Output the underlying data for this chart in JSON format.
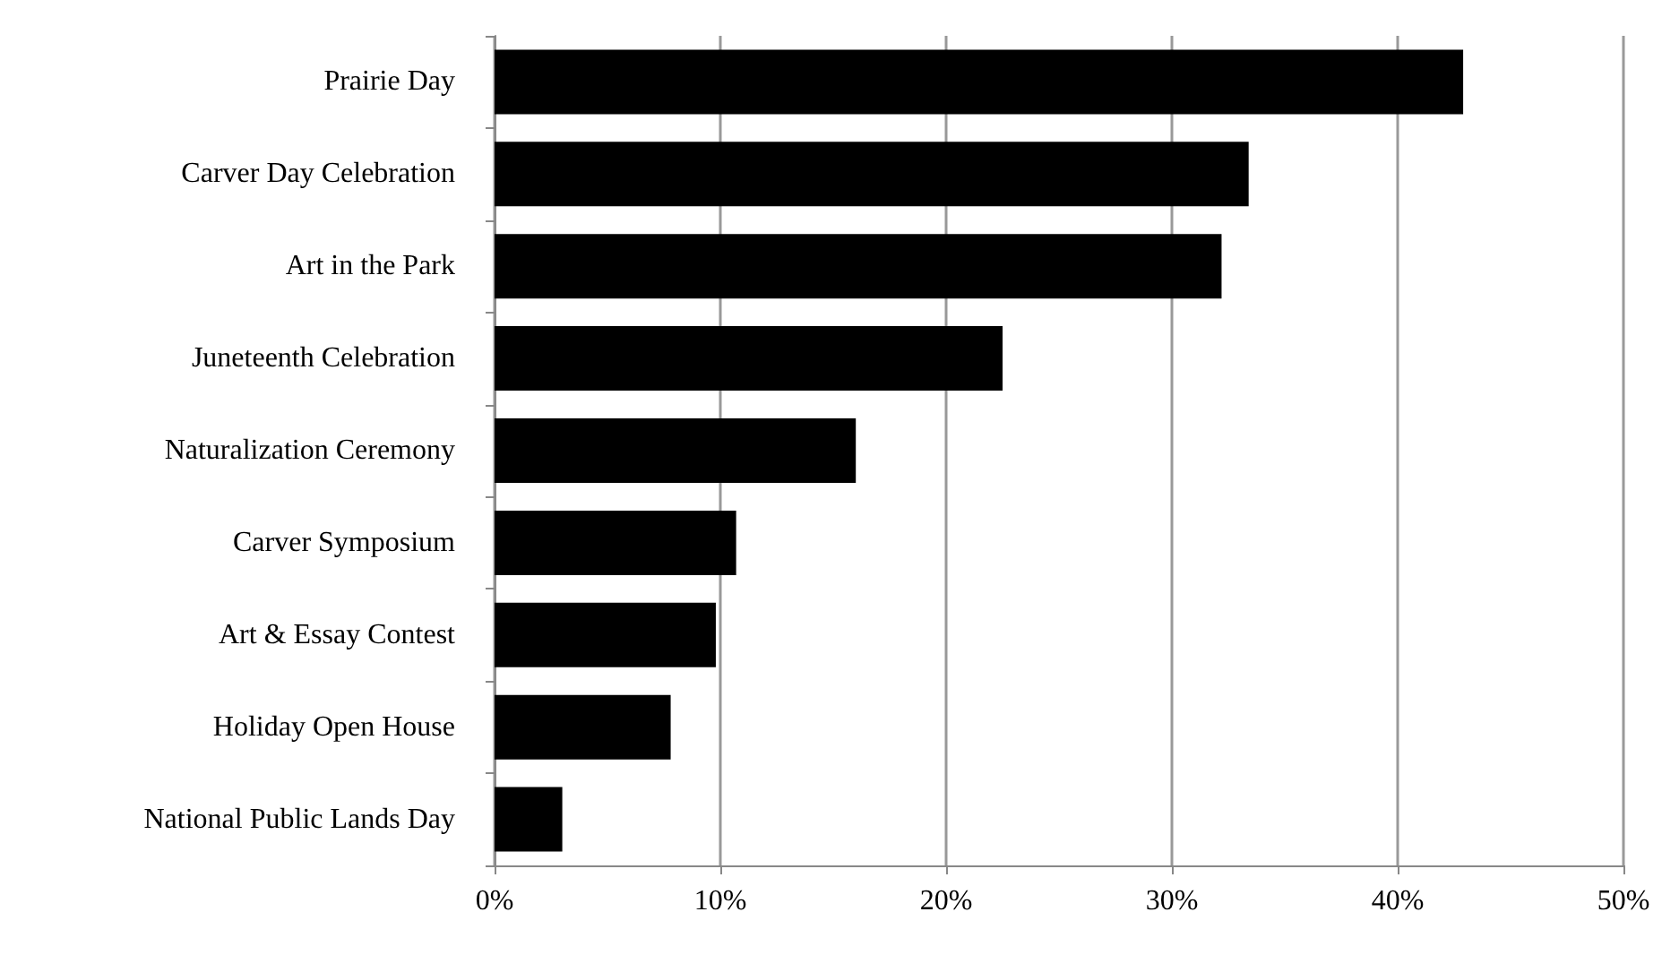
{
  "chart_data": {
    "type": "bar",
    "orientation": "horizontal",
    "categories": [
      "Prairie Day",
      "Carver Day Celebration",
      "Art in the Park",
      "Juneteenth Celebration",
      "Naturalization Ceremony",
      "Carver Symposium",
      "Art & Essay Contest",
      "Holiday Open House",
      "National Public Lands Day"
    ],
    "values": [
      42.9,
      33.4,
      32.2,
      22.5,
      16.0,
      10.7,
      9.8,
      7.8,
      3.0
    ],
    "color": "#000000",
    "xlim": [
      0,
      50
    ],
    "xticks": [
      {
        "value": 0,
        "label": "0%"
      },
      {
        "value": 10,
        "label": "10%"
      },
      {
        "value": 20,
        "label": "20%"
      },
      {
        "value": 30,
        "label": "30%"
      },
      {
        "value": 40,
        "label": "40%"
      },
      {
        "value": 50,
        "label": "50%"
      }
    ],
    "grid": "x"
  }
}
